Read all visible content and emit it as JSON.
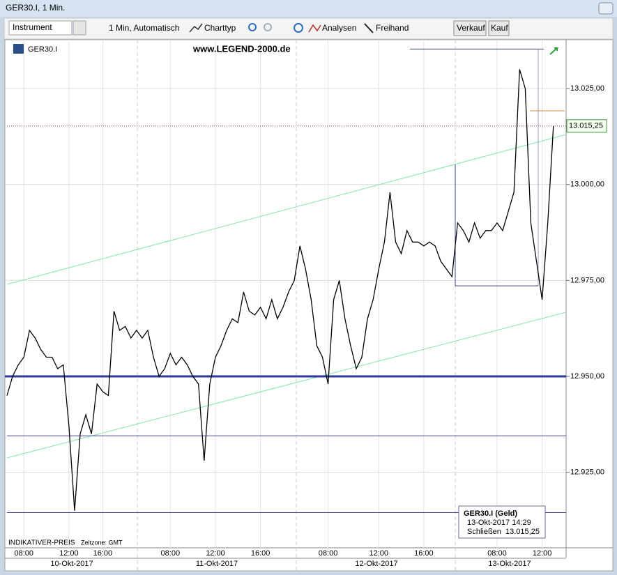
{
  "window": {
    "title": "GER30.I, 1 Min."
  },
  "toolbar": {
    "instrument": "Instrument",
    "period": "1 Min,  Automatisch",
    "chart_type": "Charttyp",
    "analyses": "Analysen",
    "freehand": "Freihand",
    "sell": "Verkauf",
    "buy": "Kauf"
  },
  "chart_data": {
    "type": "line",
    "instrument_label": "GER30.I",
    "watermark": "www.LEGEND-2000.de",
    "footer_left": "INDIKATIVER-PREIS",
    "footer_tz": "Zeitzone: GMT",
    "categories": [
      null,
      null,
      null,
      "08:00",
      null,
      null,
      null,
      null,
      null,
      null,
      null,
      "12:00",
      null,
      null,
      null,
      null,
      null,
      "16:00",
      null,
      null,
      null,
      null,
      null,
      null,
      null,
      null,
      null,
      null,
      null,
      "08:00",
      null,
      null,
      null,
      null,
      null,
      null,
      null,
      "12:00",
      null,
      null,
      null,
      null,
      null,
      null,
      null,
      "16:00",
      null,
      null,
      null,
      null,
      null,
      null,
      null,
      null,
      null,
      null,
      null,
      "08:00",
      null,
      null,
      null,
      null,
      null,
      null,
      null,
      null,
      "12:00",
      null,
      null,
      null,
      null,
      null,
      null,
      null,
      "16:00",
      null,
      null,
      null,
      null,
      null,
      null,
      null,
      null,
      null,
      null,
      null,
      null,
      "08:00",
      null,
      null,
      null,
      null,
      null,
      null,
      null,
      "12:00",
      null,
      null
    ],
    "day_labels": [
      "10-Okt-2017",
      "11-Okt-2017",
      "12-Okt-2017",
      "13-Okt-2017"
    ],
    "series": [
      {
        "name": "GER30.I",
        "color": "#000000",
        "values": [
          12945,
          12950,
          12953,
          12955,
          12962,
          12960,
          12957,
          12955,
          12955,
          12952,
          12953,
          12937,
          12915,
          12935,
          12940,
          12935,
          12948,
          12946,
          12945,
          12967,
          12962,
          12963,
          12960,
          12962,
          12960,
          12962,
          12955,
          12950,
          12952,
          12956,
          12953,
          12955,
          12953,
          12950,
          12948,
          12928,
          12948,
          12955,
          12958,
          12962,
          12965,
          12964,
          12972,
          12967,
          12966,
          12968,
          12965,
          12970,
          12965,
          12968,
          12972,
          12975,
          12984,
          12978,
          12970,
          12958,
          12955,
          12948,
          12970,
          12975,
          12965,
          12958,
          12952,
          12955,
          12965,
          12970,
          12978,
          12985,
          12998,
          12985,
          12982,
          12988,
          12985,
          12985,
          12984,
          12985,
          12984,
          12980,
          12978,
          12976,
          12990,
          12988,
          12985,
          12990,
          12986,
          12988,
          12988,
          12990,
          12988,
          12993,
          12998,
          13030,
          13025,
          12990,
          12980,
          12970,
          12990,
          13015.25
        ]
      }
    ],
    "last_price": {
      "value": 13015.25,
      "label": "13.015,25"
    },
    "levels": [
      {
        "value": 12950,
        "color": "#2e3a9a",
        "width": 3
      },
      {
        "value": 12934.5,
        "color": "#3a3f8f",
        "width": 1
      },
      {
        "value": 12914.5,
        "color": "#3a3f8f",
        "width": 1
      },
      {
        "value": 13035.3,
        "color": "#3a3f8f",
        "width": 1
      },
      {
        "value": 12973.6,
        "color": "#3a3f8f",
        "width": 1
      },
      {
        "value": 13019.2,
        "color": "#d08a3a",
        "width": 1
      }
    ],
    "ylim": [
      12905.5,
      13038.1
    ],
    "yticks": [
      {
        "value": 12925,
        "label": "12.925,00"
      },
      {
        "value": 12950,
        "label": "12.950,00"
      },
      {
        "value": 12975,
        "label": "12.975,00"
      },
      {
        "value": 13000,
        "label": "13.000,00"
      },
      {
        "value": 13025,
        "label": "13.025,00"
      }
    ],
    "grid": true,
    "tooltip": {
      "title": "GER30.I (Geld)",
      "date": "13-Okt-2017 14:29",
      "close_label": "Schließen",
      "close": "13.015,25"
    }
  }
}
